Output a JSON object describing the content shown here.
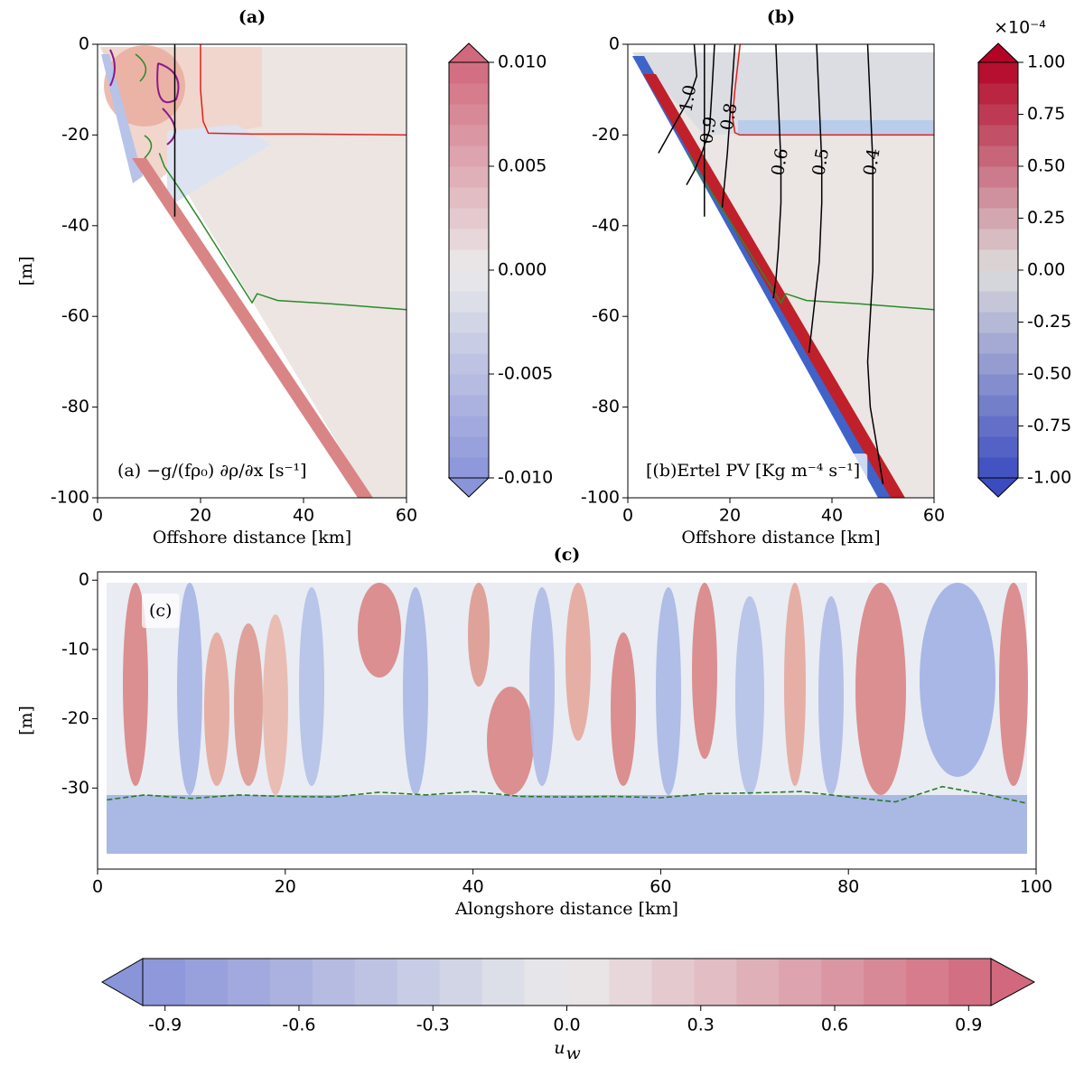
{
  "chart_data": [
    {
      "type": "contour",
      "title": "(a)",
      "xlabel": "Offshore distance [km]",
      "ylabel": "[m]",
      "annotation": "(a) −g/(fρ₀) ∂ρ/∂x [s⁻¹]",
      "xlim": [
        0,
        60
      ],
      "ylim": [
        -100,
        0
      ],
      "xticks": [
        0,
        20,
        40,
        60
      ],
      "yticks": [
        0,
        -20,
        -40,
        -60,
        -80,
        -100
      ],
      "series": [
        {
          "color": "#e0201b",
          "x": [
            20,
            20,
            20.5,
            21.5,
            30,
            40,
            50,
            60
          ],
          "values": [
            0,
            -10,
            -17,
            -19.6,
            -19.8,
            -19.8,
            -19.9,
            -20
          ]
        },
        {
          "color": "#2a8a2a",
          "x": [
            12,
            13,
            16,
            20,
            25,
            30,
            31,
            35,
            45,
            60
          ],
          "values": [
            -24,
            -27,
            -32,
            -39,
            -48,
            -57,
            -55,
            -56.5,
            -57.2,
            -58.5
          ]
        },
        {
          "color": "#000000",
          "x": [
            15,
            15
          ],
          "values": [
            0,
            -38
          ]
        }
      ],
      "colorbar": {
        "cmap": "coolwarm",
        "alpha": 0.6,
        "lim": [
          -0.01,
          0.01
        ],
        "ticks": [
          {
            "value": 0.01,
            "label": "0.010"
          },
          0.005,
          {
            "value": 0,
            "label": "0.000"
          },
          -0.005,
          {
            "value": -0.01,
            "label": "-0.010"
          }
        ]
      }
    },
    {
      "type": "contour",
      "title": "(b)",
      "xlabel": "Offshore distance [km]",
      "annotation": "[(b)Ertel PV [Kg m⁻⁴ s⁻¹]",
      "xlim": [
        0,
        60
      ],
      "ylim": [
        -100,
        0
      ],
      "xticks": [
        0,
        20,
        40,
        60
      ],
      "yticks": [
        0,
        -20,
        -40,
        -60,
        -80,
        -100
      ],
      "series": [
        {
          "color": "#e0201b",
          "x": [
            22,
            21,
            20.5,
            21,
            22,
            30,
            45,
            60
          ],
          "values": [
            0,
            -10,
            -16,
            -19.5,
            -20,
            -20,
            -20,
            -20
          ]
        },
        {
          "color": "#2a8a2a",
          "x": [
            12,
            13,
            16,
            20,
            25,
            30,
            31,
            35,
            45,
            60
          ],
          "values": [
            -24,
            -27,
            -32,
            -39,
            -48,
            -57,
            -55,
            -56.5,
            -57.2,
            -58.5
          ]
        },
        {
          "color": "#000000",
          "x": [
            15,
            15
          ],
          "values": [
            0,
            -38
          ]
        },
        {
          "color": "#000000",
          "label": "1.0",
          "x": [
            13,
            13.5,
            12,
            10,
            8,
            6
          ],
          "values": [
            0,
            -7,
            -12,
            -16,
            -20,
            -24
          ]
        },
        {
          "color": "#000000",
          "label": "0.9",
          "x": [
            17,
            16.5,
            16,
            14.5,
            13,
            11.5
          ],
          "values": [
            0,
            -10,
            -19,
            -24,
            -28,
            -31
          ]
        },
        {
          "color": "#000000",
          "label": "0.8",
          "x": [
            21,
            20.5,
            20,
            19.5,
            19,
            18.5
          ],
          "values": [
            0,
            -8,
            -16,
            -24,
            -30,
            -36
          ]
        },
        {
          "color": "#000000",
          "label": "0.6",
          "x": [
            29,
            29.5,
            30,
            30,
            29.5,
            29,
            28.5
          ],
          "values": [
            0,
            -13,
            -26,
            -35,
            -45,
            -52,
            -56
          ]
        },
        {
          "color": "#000000",
          "label": "0.5",
          "x": [
            37,
            37.5,
            38,
            38,
            37.5,
            36.5,
            35.5
          ],
          "values": [
            0,
            -13,
            -26,
            -35,
            -48,
            -58,
            -68
          ]
        },
        {
          "color": "#000000",
          "label": "0.4",
          "x": [
            47,
            47.5,
            48,
            48,
            48,
            47.5,
            47,
            47.5,
            49,
            50
          ],
          "values": [
            0,
            -13,
            -26,
            -35,
            -50,
            -60,
            -70,
            -80,
            -90,
            -97
          ]
        }
      ],
      "colorbar": {
        "cmap": "coolwarm",
        "alpha": 1,
        "lim": [
          -1,
          1
        ],
        "multiplier": "×10⁻⁴",
        "ticks": [
          {
            "value": 1,
            "label": "1.00"
          },
          0.75,
          {
            "value": 0.5,
            "label": "0.50"
          },
          0.25,
          {
            "value": 0,
            "label": "0.00"
          },
          -0.25,
          {
            "value": -0.5,
            "label": "-0.50"
          },
          -0.75,
          {
            "value": -1,
            "label": "-1.00"
          }
        ]
      }
    },
    {
      "type": "contour",
      "title": "(c)",
      "xlabel": "Alongshore distance [km]",
      "ylabel": "[m]",
      "annotation": "(c)",
      "xlim": [
        0,
        100
      ],
      "ylim": [
        -41.7,
        1.2
      ],
      "xticks": [
        0,
        20,
        40,
        60,
        80,
        100
      ],
      "yticks": [
        0,
        -10,
        -20,
        -30
      ],
      "series": [
        {
          "color": "#2a7a2a",
          "dash": true,
          "x": [
            1,
            5,
            10,
            15,
            20,
            25,
            30,
            35,
            40,
            45,
            50,
            55,
            60,
            65,
            70,
            75,
            80,
            85,
            90,
            95,
            99
          ],
          "values": [
            -31.7,
            -31,
            -31.5,
            -31,
            -31.2,
            -31.3,
            -30.6,
            -31,
            -30.5,
            -31.2,
            -31.3,
            -31.2,
            -31.4,
            -30.8,
            -30.7,
            -30.5,
            -31.3,
            -32,
            -29.8,
            -31,
            -32.2
          ]
        }
      ],
      "colorbar": {
        "cmap": "coolwarm",
        "alpha": 0.6,
        "lim": [
          -0.95,
          0.95
        ],
        "label": "u",
        "label_subscript": "w",
        "ticks": [
          -0.9,
          -0.6,
          -0.3,
          {
            "value": 0,
            "label": "0.0"
          },
          0.3,
          0.6,
          0.9
        ]
      }
    }
  ]
}
